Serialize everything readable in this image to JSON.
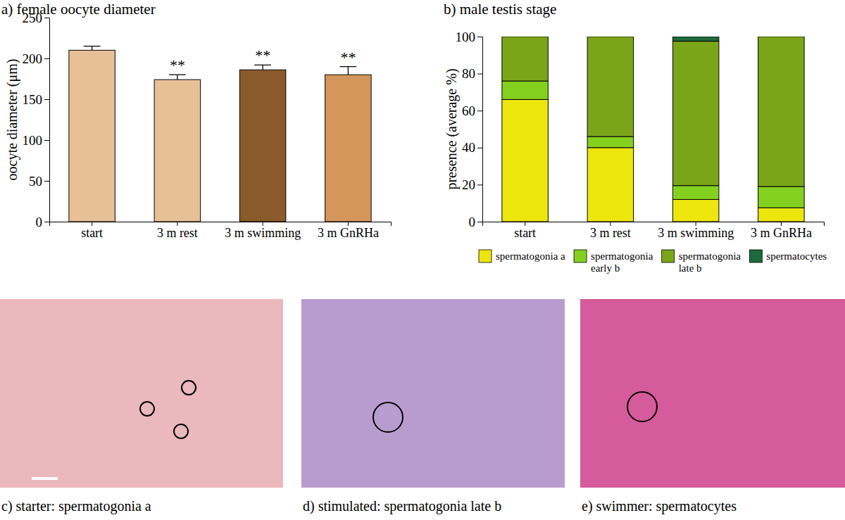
{
  "chart_data": [
    {
      "type": "bar",
      "title": "a) female oocyte diameter",
      "y_label": "oocyte diameter (μm)",
      "categories": [
        "start",
        "3 m rest",
        "3 m swimming",
        "3 m GnRHa"
      ],
      "values": [
        210,
        174,
        186,
        180
      ],
      "errors": [
        5,
        6,
        6,
        10
      ],
      "colors": [
        "#e8c096",
        "#e8c096",
        "#8b5a2b",
        "#d4965a"
      ],
      "annotations": [
        {
          "category": "3 m rest",
          "text": "**"
        },
        {
          "category": "3 m swimming",
          "text": "**"
        },
        {
          "category": "3 m GnRHa",
          "text": "**"
        }
      ],
      "ylim": [
        0,
        250
      ],
      "yticks": [
        0,
        50,
        100,
        150,
        200,
        250
      ]
    },
    {
      "type": "bar",
      "title": "b) male testis stage",
      "y_label": "presence (average %)",
      "categories": [
        "start",
        "3 m rest",
        "3 m swimming",
        "3 m GnRHa"
      ],
      "stacked": true,
      "legend": "bottom",
      "series": [
        {
          "name": "spermatogonia a",
          "color": "#ece60c",
          "values": [
            66,
            40,
            12,
            7.5
          ]
        },
        {
          "name": "spermatogonia early b",
          "color": "#84d01e",
          "values": [
            10,
            6,
            7.5,
            11.5
          ]
        },
        {
          "name": "spermatogonia late b",
          "color": "#7ba518",
          "values": [
            24,
            54,
            78,
            81
          ]
        },
        {
          "name": "spermatocytes",
          "color": "#1d6a3c",
          "values": [
            0,
            0,
            2.5,
            0
          ]
        }
      ],
      "ylim": [
        0,
        100
      ],
      "yticks": [
        0,
        20,
        40,
        60,
        80,
        100
      ]
    }
  ],
  "images": [
    {
      "caption": "c) starter: spermatogonia a"
    },
    {
      "caption": "d) stimulated: spermatogonia late b"
    },
    {
      "caption": "e) swimmer: spermatocytes"
    }
  ]
}
